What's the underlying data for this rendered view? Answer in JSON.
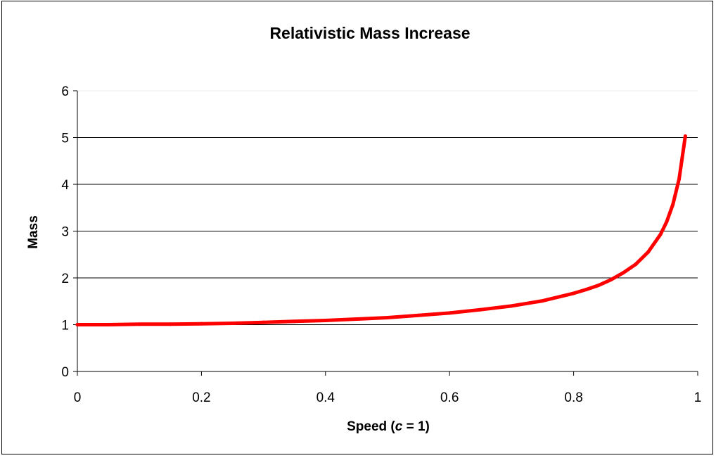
{
  "chart_data": {
    "type": "line",
    "title": "Relativistic Mass Increase",
    "xlabel": {
      "prefix": "Speed (",
      "variable": "c",
      "suffix": " = 1)"
    },
    "ylabel": "Mass",
    "xlim": [
      0,
      1
    ],
    "ylim": [
      0,
      6
    ],
    "x_ticks": [
      0,
      0.2,
      0.4,
      0.6,
      0.8,
      1
    ],
    "x_tick_labels": [
      "0",
      "0.2",
      "0.4",
      "0.6",
      "0.8",
      "1"
    ],
    "y_ticks": [
      0,
      1,
      2,
      3,
      4,
      5,
      6
    ],
    "y_tick_labels": [
      "0",
      "1",
      "2",
      "3",
      "4",
      "5",
      "6"
    ],
    "grid": "horizontal",
    "legend": "none",
    "series": [
      {
        "color": "#ff0000",
        "x": [
          0,
          0.05,
          0.1,
          0.15,
          0.2,
          0.25,
          0.3,
          0.35,
          0.4,
          0.45,
          0.5,
          0.55,
          0.6,
          0.65,
          0.7,
          0.75,
          0.8,
          0.82,
          0.84,
          0.86,
          0.88,
          0.9,
          0.92,
          0.94,
          0.95,
          0.96,
          0.97,
          0.98
        ],
        "values": [
          1.0,
          1.0,
          1.01,
          1.01,
          1.02,
          1.03,
          1.05,
          1.07,
          1.09,
          1.12,
          1.15,
          1.2,
          1.25,
          1.32,
          1.4,
          1.51,
          1.67,
          1.75,
          1.84,
          1.96,
          2.11,
          2.29,
          2.55,
          2.93,
          3.2,
          3.57,
          4.11,
          5.03
        ]
      }
    ]
  }
}
